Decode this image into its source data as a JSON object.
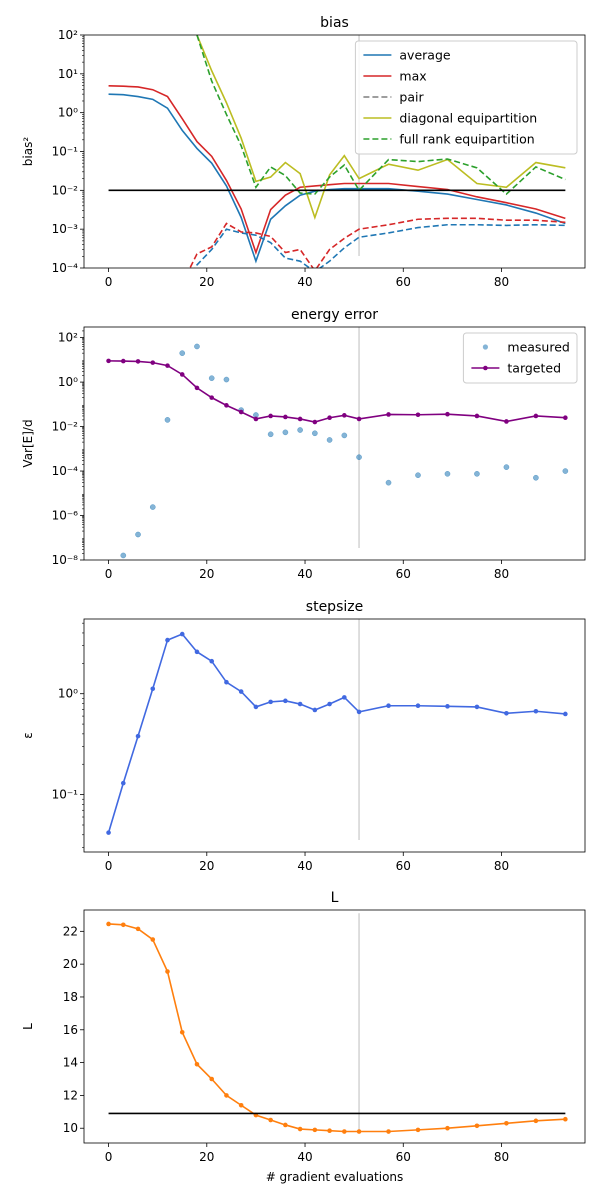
{
  "chart_data": [
    {
      "type": "line",
      "title": "bias",
      "xlabel": "",
      "ylabel": "bias²",
      "yscale": "log",
      "xlim": [
        -5,
        97
      ],
      "ylim": [
        0.0001,
        100
      ],
      "xticks": [
        0,
        20,
        40,
        60,
        80
      ],
      "xtick_labels": [
        "0",
        "20",
        "40",
        "60",
        "80"
      ],
      "yticks": [
        0.0001,
        0.001,
        0.01,
        0.1,
        1,
        10,
        100
      ],
      "ytick_labels": [
        "10⁻⁴",
        "10⁻³",
        "10⁻²",
        "10⁻¹",
        "10⁰",
        "10¹",
        "10²"
      ],
      "vline": 51,
      "hline": 0.01,
      "legend_position": "top-right",
      "series": [
        {
          "name": "average",
          "color": "#1f77b4",
          "dash": "solid",
          "in_legend": true,
          "x": [
            0,
            3,
            6,
            9,
            12,
            15,
            18,
            21,
            24,
            27,
            30,
            33,
            36,
            39,
            42,
            45,
            48,
            51,
            57,
            63,
            69,
            75,
            81,
            87,
            93
          ],
          "y": [
            3.0,
            2.9,
            2.6,
            2.2,
            1.3,
            0.35,
            0.12,
            0.05,
            0.013,
            0.002,
            0.00015,
            0.0018,
            0.004,
            0.0075,
            0.0095,
            0.0105,
            0.011,
            0.011,
            0.011,
            0.0095,
            0.008,
            0.0058,
            0.0042,
            0.0026,
            0.0014
          ]
        },
        {
          "name": "max",
          "color": "#d62728",
          "dash": "solid",
          "in_legend": true,
          "x": [
            0,
            3,
            6,
            9,
            12,
            15,
            18,
            21,
            24,
            27,
            30,
            33,
            36,
            39,
            42,
            45,
            48,
            51,
            57,
            63,
            69,
            75,
            81,
            87,
            93
          ],
          "y": [
            4.9,
            4.8,
            4.6,
            3.9,
            2.6,
            0.7,
            0.18,
            0.075,
            0.018,
            0.0033,
            0.00025,
            0.0032,
            0.0075,
            0.012,
            0.013,
            0.014,
            0.015,
            0.015,
            0.015,
            0.0125,
            0.0105,
            0.0068,
            0.0048,
            0.0033,
            0.0019
          ]
        },
        {
          "name": "pair",
          "color": "#7f7f7f",
          "dash": "dashed",
          "in_legend": true,
          "x": [],
          "y": []
        },
        {
          "name": "diagonal equipartition",
          "color": "#bcbd22",
          "dash": "solid",
          "in_legend": true,
          "x": [
            18,
            21,
            24,
            27,
            30,
            33,
            36,
            39,
            42,
            45,
            48,
            51,
            57,
            63,
            69,
            75,
            81,
            87,
            93
          ],
          "y": [
            100,
            12,
            1.8,
            0.22,
            0.017,
            0.022,
            0.052,
            0.027,
            0.002,
            0.025,
            0.078,
            0.02,
            0.047,
            0.033,
            0.062,
            0.015,
            0.012,
            0.052,
            0.038
          ]
        },
        {
          "name": "full rank equipartition",
          "color": "#2ca02c",
          "dash": "dashed",
          "in_legend": true,
          "x": [
            18,
            21,
            24,
            27,
            30,
            33,
            36,
            39,
            42,
            45,
            48,
            51,
            57,
            63,
            69,
            75,
            81,
            87,
            93
          ],
          "y": [
            100,
            6.5,
            0.9,
            0.14,
            0.012,
            0.04,
            0.024,
            0.0085,
            0.008,
            0.022,
            0.045,
            0.01,
            0.062,
            0.055,
            0.064,
            0.038,
            0.008,
            0.04,
            0.019
          ]
        },
        {
          "name": "",
          "color": "#1f77b4",
          "dash": "dashed",
          "in_legend": false,
          "x": [
            15,
            18,
            21,
            24,
            27,
            30,
            33,
            36,
            39,
            42,
            45,
            48,
            51,
            57,
            63,
            69,
            75,
            81,
            87,
            93
          ],
          "y": [
            3e-05,
            0.00012,
            0.0003,
            0.001,
            0.0008,
            0.0007,
            0.00045,
            0.00018,
            0.00015,
            8e-05,
            0.00015,
            0.00033,
            0.00062,
            0.0008,
            0.0011,
            0.0013,
            0.0013,
            0.00125,
            0.0013,
            0.00125
          ]
        },
        {
          "name": "",
          "color": "#d62728",
          "dash": "dashed",
          "in_legend": false,
          "x": [
            15,
            18,
            21,
            24,
            27,
            30,
            33,
            36,
            39,
            42,
            45,
            48,
            51,
            57,
            63,
            69,
            75,
            81,
            87,
            93
          ],
          "y": [
            4e-05,
            0.00023,
            0.00035,
            0.0014,
            0.00085,
            0.0008,
            0.00065,
            0.00025,
            0.0003,
            8.5e-05,
            0.0003,
            0.00058,
            0.001,
            0.0013,
            0.0018,
            0.0019,
            0.0019,
            0.0017,
            0.0017,
            0.0015
          ]
        }
      ]
    },
    {
      "type": "line",
      "title": "energy error",
      "xlabel": "",
      "ylabel": "Var[E]/d",
      "yscale": "log",
      "xlim": [
        -5,
        97
      ],
      "ylim": [
        1e-08,
        300
      ],
      "xticks": [
        0,
        20,
        40,
        60,
        80
      ],
      "xtick_labels": [
        "0",
        "20",
        "40",
        "60",
        "80"
      ],
      "yticks": [
        1e-08,
        1e-06,
        0.0001,
        0.01,
        1,
        100
      ],
      "ytick_labels": [
        "10⁻⁸",
        "10⁻⁶",
        "10⁻⁴",
        "10⁻²",
        "10⁰",
        "10²"
      ],
      "vline": 51,
      "legend_position": "top-right",
      "series": [
        {
          "name": "measured",
          "color": "#1f77b4",
          "style": "points",
          "x": [
            0,
            3,
            6,
            9,
            12,
            15,
            18,
            21,
            24,
            27,
            30,
            33,
            36,
            39,
            42,
            45,
            48,
            51,
            57,
            63,
            69,
            75,
            81,
            87,
            93
          ],
          "y": [
            7e-09,
            1.6e-08,
            1.4e-07,
            2.4e-06,
            0.02,
            20,
            40,
            1.5,
            1.3,
            0.055,
            0.033,
            0.0045,
            0.0055,
            0.007,
            0.005,
            0.0025,
            0.004,
            0.00042,
            3e-05,
            6.5e-05,
            7.5e-05,
            7.5e-05,
            0.00015,
            5e-05,
            0.0001
          ]
        },
        {
          "name": "targeted",
          "color": "#800080",
          "style": "line-markers",
          "x": [
            0,
            3,
            6,
            9,
            12,
            15,
            18,
            21,
            24,
            27,
            30,
            33,
            36,
            39,
            42,
            45,
            48,
            51,
            57,
            63,
            69,
            75,
            81,
            87,
            93
          ],
          "y": [
            9.0,
            8.8,
            8.5,
            7.5,
            5.5,
            2.2,
            0.55,
            0.2,
            0.09,
            0.045,
            0.022,
            0.03,
            0.027,
            0.022,
            0.016,
            0.025,
            0.032,
            0.022,
            0.035,
            0.034,
            0.036,
            0.03,
            0.017,
            0.03,
            0.025
          ]
        }
      ]
    },
    {
      "type": "line",
      "title": "stepsize",
      "xlabel": "",
      "ylabel": "ε",
      "yscale": "log",
      "xlim": [
        -5,
        97
      ],
      "ylim": [
        0.027,
        5.5
      ],
      "xticks": [
        0,
        20,
        40,
        60,
        80
      ],
      "xtick_labels": [
        "0",
        "20",
        "40",
        "60",
        "80"
      ],
      "yticks": [
        0.1,
        1
      ],
      "ytick_labels": [
        "10⁻¹",
        "10⁰"
      ],
      "vline": 51,
      "series": [
        {
          "name": "",
          "color": "#4169e1",
          "style": "line-markers",
          "x": [
            0,
            3,
            6,
            9,
            12,
            15,
            18,
            21,
            24,
            27,
            30,
            33,
            36,
            39,
            42,
            45,
            48,
            51,
            57,
            63,
            69,
            75,
            81,
            87,
            93
          ],
          "y": [
            0.042,
            0.13,
            0.38,
            1.12,
            3.4,
            3.9,
            2.6,
            2.1,
            1.3,
            1.05,
            0.74,
            0.83,
            0.85,
            0.79,
            0.69,
            0.79,
            0.92,
            0.66,
            0.76,
            0.76,
            0.75,
            0.74,
            0.64,
            0.67,
            0.63
          ]
        }
      ]
    },
    {
      "type": "line",
      "title": "L",
      "xlabel": "# gradient evaluations",
      "ylabel": "L",
      "yscale": "linear",
      "xlim": [
        -5,
        97
      ],
      "ylim": [
        9.1,
        23.3
      ],
      "xticks": [
        0,
        20,
        40,
        60,
        80
      ],
      "xtick_labels": [
        "0",
        "20",
        "40",
        "60",
        "80"
      ],
      "yticks": [
        10,
        12,
        14,
        16,
        18,
        20,
        22
      ],
      "ytick_labels": [
        "10",
        "12",
        "14",
        "16",
        "18",
        "20",
        "22"
      ],
      "vline": 51,
      "hline": 10.9,
      "series": [
        {
          "name": "",
          "color": "#ff7f0e",
          "style": "line-markers",
          "x": [
            0,
            3,
            6,
            9,
            12,
            15,
            18,
            21,
            24,
            27,
            30,
            33,
            36,
            39,
            42,
            45,
            48,
            51,
            57,
            63,
            69,
            75,
            81,
            87,
            93
          ],
          "y": [
            22.45,
            22.4,
            22.15,
            21.5,
            19.55,
            15.85,
            13.9,
            13.0,
            12.0,
            11.4,
            10.8,
            10.5,
            10.2,
            9.95,
            9.9,
            9.85,
            9.8,
            9.8,
            9.8,
            9.9,
            10.0,
            10.15,
            10.3,
            10.45,
            10.55
          ]
        }
      ]
    }
  ]
}
